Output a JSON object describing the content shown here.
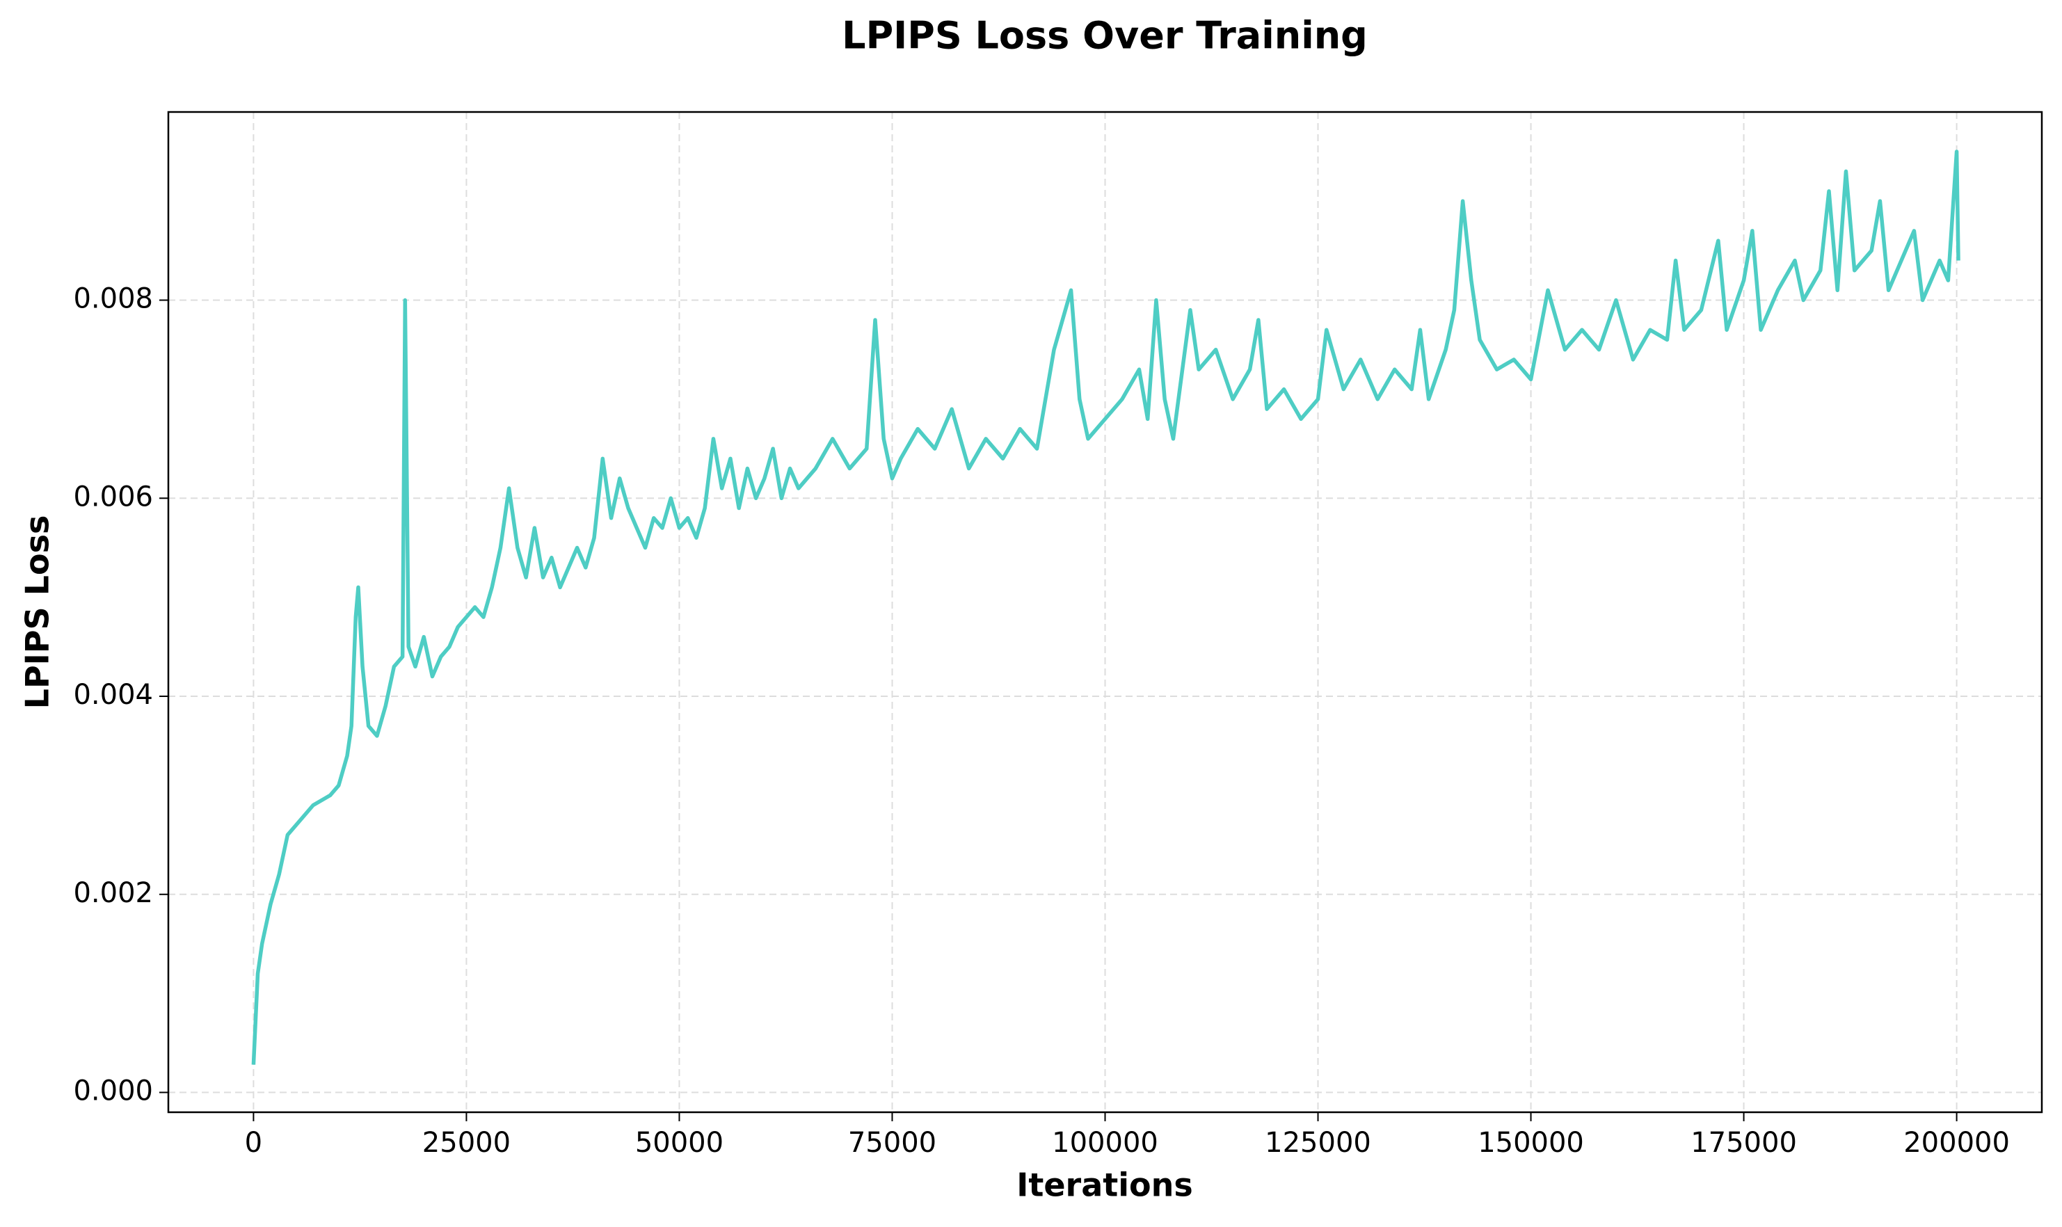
{
  "chart_data": {
    "type": "line",
    "title": "LPIPS Loss Over Training",
    "x_label": "Iterations",
    "y_label": "LPIPS Loss",
    "color": "#4ecdc4",
    "grid": true,
    "x": [
      0,
      500,
      1000,
      2000,
      3000,
      4000,
      5000,
      7000,
      9000,
      10000,
      11000,
      11500,
      12000,
      12300,
      12800,
      13500,
      14500,
      15500,
      16500,
      17500,
      17800,
      18200,
      19000,
      20000,
      21000,
      22000,
      23000,
      24000,
      25000,
      26000,
      27000,
      28000,
      29000,
      30000,
      31000,
      32000,
      33000,
      34000,
      35000,
      36000,
      37000,
      38000,
      39000,
      40000,
      41000,
      42000,
      43000,
      44000,
      45000,
      46000,
      47000,
      48000,
      49000,
      50000,
      51000,
      52000,
      53000,
      54000,
      55000,
      56000,
      57000,
      58000,
      59000,
      60000,
      61000,
      62000,
      63000,
      64000,
      66000,
      68000,
      70000,
      72000,
      73000,
      74000,
      75000,
      76000,
      78000,
      80000,
      82000,
      84000,
      86000,
      88000,
      90000,
      92000,
      94000,
      96000,
      97000,
      98000,
      100000,
      102000,
      104000,
      105000,
      106000,
      107000,
      108000,
      110000,
      111000,
      113000,
      115000,
      117000,
      118000,
      119000,
      121000,
      123000,
      125000,
      126000,
      128000,
      130000,
      132000,
      134000,
      136000,
      137000,
      138000,
      140000,
      141000,
      142000,
      143000,
      144000,
      146000,
      148000,
      150000,
      152000,
      154000,
      156000,
      158000,
      160000,
      162000,
      164000,
      166000,
      167000,
      168000,
      170000,
      172000,
      173000,
      175000,
      176000,
      177000,
      179000,
      181000,
      182000,
      184000,
      185000,
      186000,
      187000,
      188000,
      190000,
      191000,
      192000,
      194000,
      195000,
      196000,
      198000,
      199000,
      200000,
      200200
    ],
    "values": [
      0.00028,
      0.0012,
      0.0015,
      0.0019,
      0.0022,
      0.0026,
      0.0027,
      0.0029,
      0.003,
      0.0031,
      0.0034,
      0.0037,
      0.0048,
      0.0051,
      0.0043,
      0.0037,
      0.0036,
      0.0039,
      0.0043,
      0.0044,
      0.008,
      0.0045,
      0.0043,
      0.0046,
      0.0042,
      0.0044,
      0.0045,
      0.0047,
      0.0048,
      0.0049,
      0.0048,
      0.0051,
      0.0055,
      0.0061,
      0.0055,
      0.0052,
      0.0057,
      0.0052,
      0.0054,
      0.0051,
      0.0053,
      0.0055,
      0.0053,
      0.0056,
      0.0064,
      0.0058,
      0.0062,
      0.0059,
      0.0057,
      0.0055,
      0.0058,
      0.0057,
      0.006,
      0.0057,
      0.0058,
      0.0056,
      0.0059,
      0.0066,
      0.0061,
      0.0064,
      0.0059,
      0.0063,
      0.006,
      0.0062,
      0.0065,
      0.006,
      0.0063,
      0.0061,
      0.0063,
      0.0066,
      0.0063,
      0.0065,
      0.0078,
      0.0066,
      0.0062,
      0.0064,
      0.0067,
      0.0065,
      0.0069,
      0.0063,
      0.0066,
      0.0064,
      0.0067,
      0.0065,
      0.0075,
      0.0081,
      0.007,
      0.0066,
      0.0068,
      0.007,
      0.0073,
      0.0068,
      0.008,
      0.007,
      0.0066,
      0.0079,
      0.0073,
      0.0075,
      0.007,
      0.0073,
      0.0078,
      0.0069,
      0.0071,
      0.0068,
      0.007,
      0.0077,
      0.0071,
      0.0074,
      0.007,
      0.0073,
      0.0071,
      0.0077,
      0.007,
      0.0075,
      0.0079,
      0.009,
      0.0082,
      0.0076,
      0.0073,
      0.0074,
      0.0072,
      0.0081,
      0.0075,
      0.0077,
      0.0075,
      0.008,
      0.0074,
      0.0077,
      0.0076,
      0.0084,
      0.0077,
      0.0079,
      0.0086,
      0.0077,
      0.0082,
      0.0087,
      0.0077,
      0.0081,
      0.0084,
      0.008,
      0.0083,
      0.0091,
      0.0081,
      0.0093,
      0.0083,
      0.0085,
      0.009,
      0.0081,
      0.0085,
      0.0087,
      0.008,
      0.0084,
      0.0082,
      0.0095,
      0.0084
    ],
    "xlim": [
      -10000,
      210000
    ],
    "ylim": [
      -0.0002,
      0.0099
    ],
    "xticks": [
      0,
      25000,
      50000,
      75000,
      100000,
      125000,
      150000,
      175000,
      200000
    ],
    "yticks": [
      {
        "value": 0,
        "label": "0.000"
      },
      {
        "value": 0.002,
        "label": "0.002"
      },
      {
        "value": 0.004,
        "label": "0.004"
      },
      {
        "value": 0.006,
        "label": "0.006"
      },
      {
        "value": 0.008,
        "label": "0.008"
      }
    ]
  }
}
